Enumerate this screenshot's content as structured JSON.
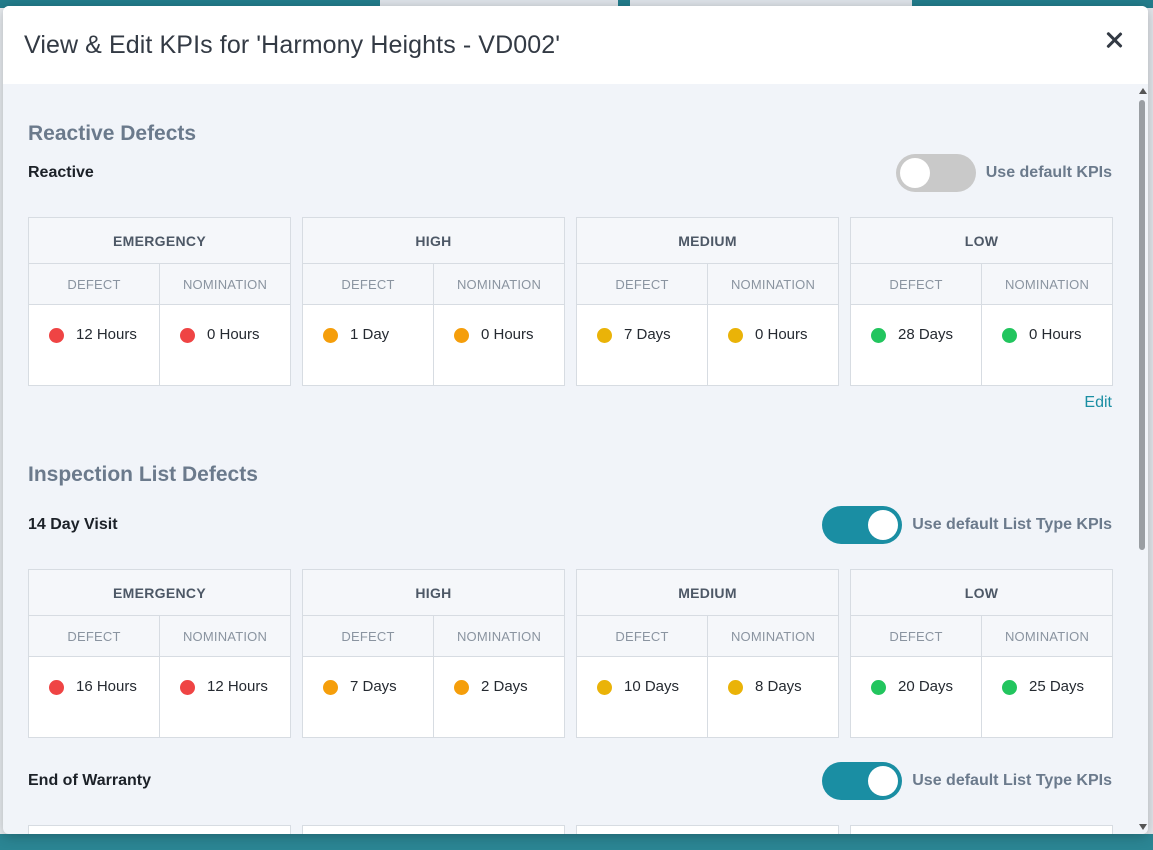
{
  "modal": {
    "title": "View & Edit KPIs for 'Harmony Heights - VD002'"
  },
  "colors": {
    "emergency": "#ef4444",
    "high": "#f59e0b",
    "medium": "#eab308",
    "low": "#22c55e",
    "accent": "#1a8ea3"
  },
  "reactive": {
    "section_title": "Reactive Defects",
    "row_label": "Reactive",
    "toggle_label": "Use default KPIs",
    "toggle_on": false,
    "edit_label": "Edit",
    "cards": [
      {
        "priority": "EMERGENCY",
        "defect_label": "DEFECT",
        "nomination_label": "NOMINATION",
        "defect": "12 Hours",
        "nomination": "0 Hours"
      },
      {
        "priority": "HIGH",
        "defect_label": "DEFECT",
        "nomination_label": "NOMINATION",
        "defect": "1 Day",
        "nomination": "0 Hours"
      },
      {
        "priority": "MEDIUM",
        "defect_label": "DEFECT",
        "nomination_label": "NOMINATION",
        "defect": "7 Days",
        "nomination": "0 Hours"
      },
      {
        "priority": "LOW",
        "defect_label": "DEFECT",
        "nomination_label": "NOMINATION",
        "defect": "28 Days",
        "nomination": "0 Hours"
      }
    ]
  },
  "inspection": {
    "section_title": "Inspection List Defects",
    "visit14": {
      "row_label": "14 Day Visit",
      "toggle_label": "Use default List Type KPIs",
      "toggle_on": true,
      "cards": [
        {
          "priority": "EMERGENCY",
          "defect_label": "DEFECT",
          "nomination_label": "NOMINATION",
          "defect": "16 Hours",
          "nomination": "12 Hours"
        },
        {
          "priority": "HIGH",
          "defect_label": "DEFECT",
          "nomination_label": "NOMINATION",
          "defect": "7 Days",
          "nomination": "2 Days"
        },
        {
          "priority": "MEDIUM",
          "defect_label": "DEFECT",
          "nomination_label": "NOMINATION",
          "defect": "10 Days",
          "nomination": "8 Days"
        },
        {
          "priority": "LOW",
          "defect_label": "DEFECT",
          "nomination_label": "NOMINATION",
          "defect": "20 Days",
          "nomination": "25 Days"
        }
      ]
    },
    "end_warranty": {
      "row_label": "End of Warranty",
      "toggle_label": "Use default List Type KPIs",
      "toggle_on": true
    }
  }
}
